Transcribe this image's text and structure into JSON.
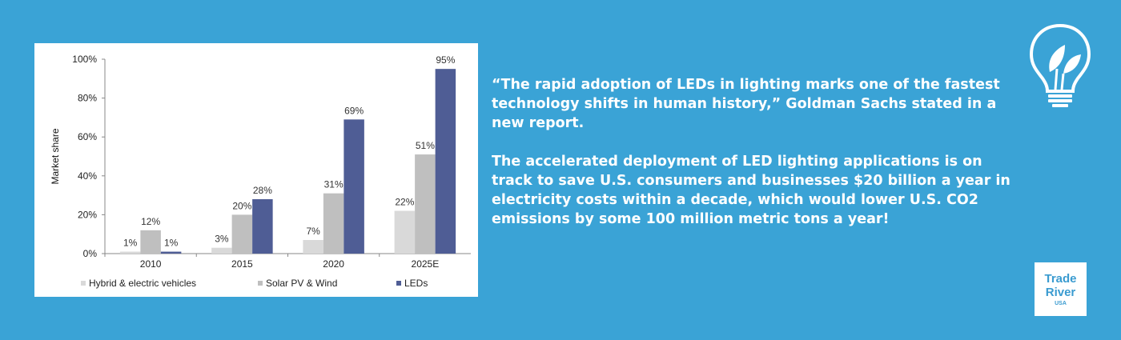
{
  "chart_data": {
    "type": "bar",
    "categories": [
      "2010",
      "2015",
      "2020",
      "2025E"
    ],
    "series": [
      {
        "name": "Hybrid & electric vehicles",
        "color": "#d9d9d9",
        "values": [
          1,
          3,
          7,
          22
        ],
        "labels": [
          "1%",
          "3%",
          "7%",
          "22%"
        ]
      },
      {
        "name": "Solar PV & Wind",
        "color": "#bfbfbf",
        "values": [
          12,
          20,
          31,
          51
        ],
        "labels": [
          "12%",
          "20%",
          "31%",
          "51%"
        ]
      },
      {
        "name": "LEDs",
        "color": "#4f5d95",
        "values": [
          1,
          28,
          69,
          95
        ],
        "labels": [
          "1%",
          "28%",
          "69%",
          "95%"
        ]
      }
    ],
    "ylabel": "Market share",
    "ylim": [
      0,
      100
    ],
    "yticks": [
      0,
      20,
      40,
      60,
      80,
      100
    ],
    "ytick_labels": [
      "0%",
      "20%",
      "40%",
      "60%",
      "80%",
      "100%"
    ],
    "legend": "bottom"
  },
  "text": {
    "quote": "“The rapid adoption of LEDs in lighting marks one of the fastest technology shifts in human history,” Goldman Sachs stated in a new report.",
    "paragraph": "The accelerated deployment of LED lighting applications is on track to save U.S. consumers and businesses $20 billion a year in electricity costs within a decade, which would lower U.S. CO2 emissions by some 100 million metric tons a year!"
  },
  "logo": {
    "line1": "Trade",
    "line2": "River",
    "line3": "USA"
  },
  "icons": {
    "bulb": "lightbulb-leaf-icon"
  }
}
